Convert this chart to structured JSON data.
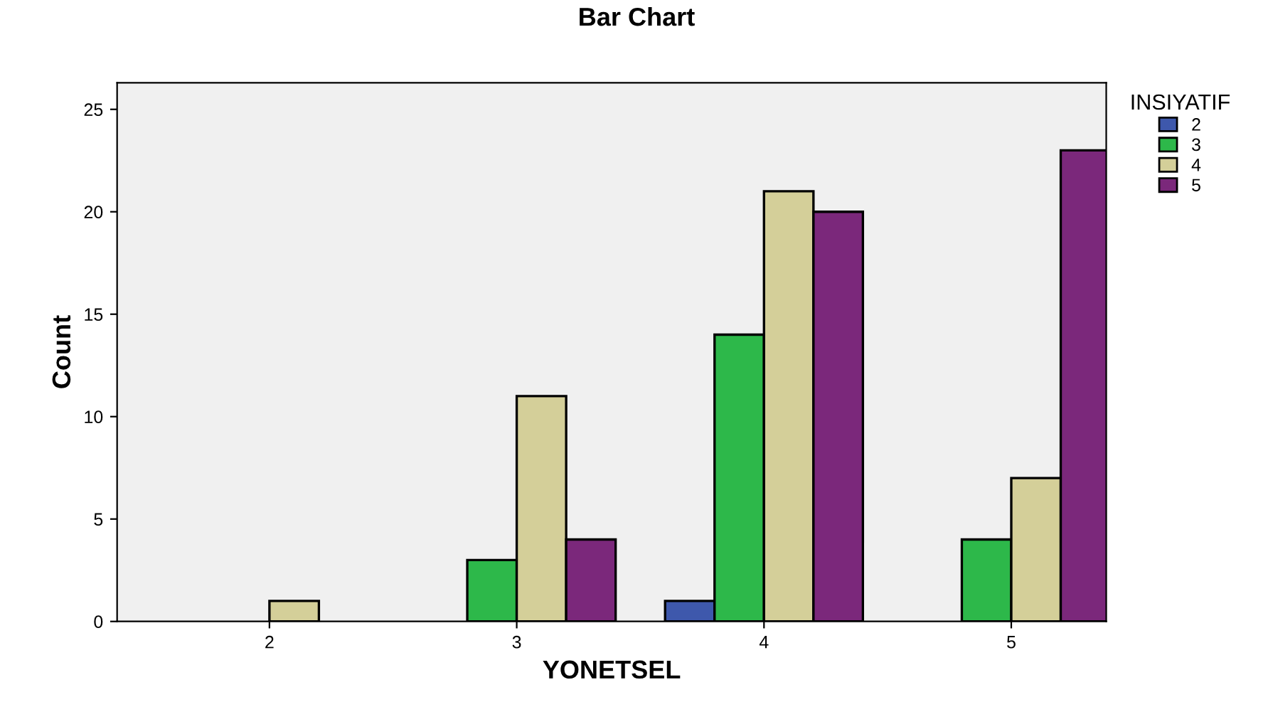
{
  "chart_data": {
    "type": "bar",
    "title": "Bar Chart",
    "xlabel": "YONETSEL",
    "ylabel": "Count",
    "legend_title": "INSIYATIF",
    "categories": [
      "2",
      "3",
      "4",
      "5"
    ],
    "series": [
      {
        "name": "2",
        "color": "#3e58ac",
        "values": [
          null,
          null,
          1,
          null
        ]
      },
      {
        "name": "3",
        "color": "#2db84a",
        "values": [
          null,
          3,
          14,
          4
        ]
      },
      {
        "name": "4",
        "color": "#d4cf99",
        "values": [
          1,
          11,
          21,
          7
        ]
      },
      {
        "name": "5",
        "color": "#7b287b",
        "values": [
          null,
          4,
          20,
          23
        ]
      }
    ],
    "ylim": [
      0,
      26.3
    ],
    "yticks": [
      0,
      5,
      10,
      15,
      20,
      25
    ],
    "grid": false,
    "legend": "top right"
  }
}
